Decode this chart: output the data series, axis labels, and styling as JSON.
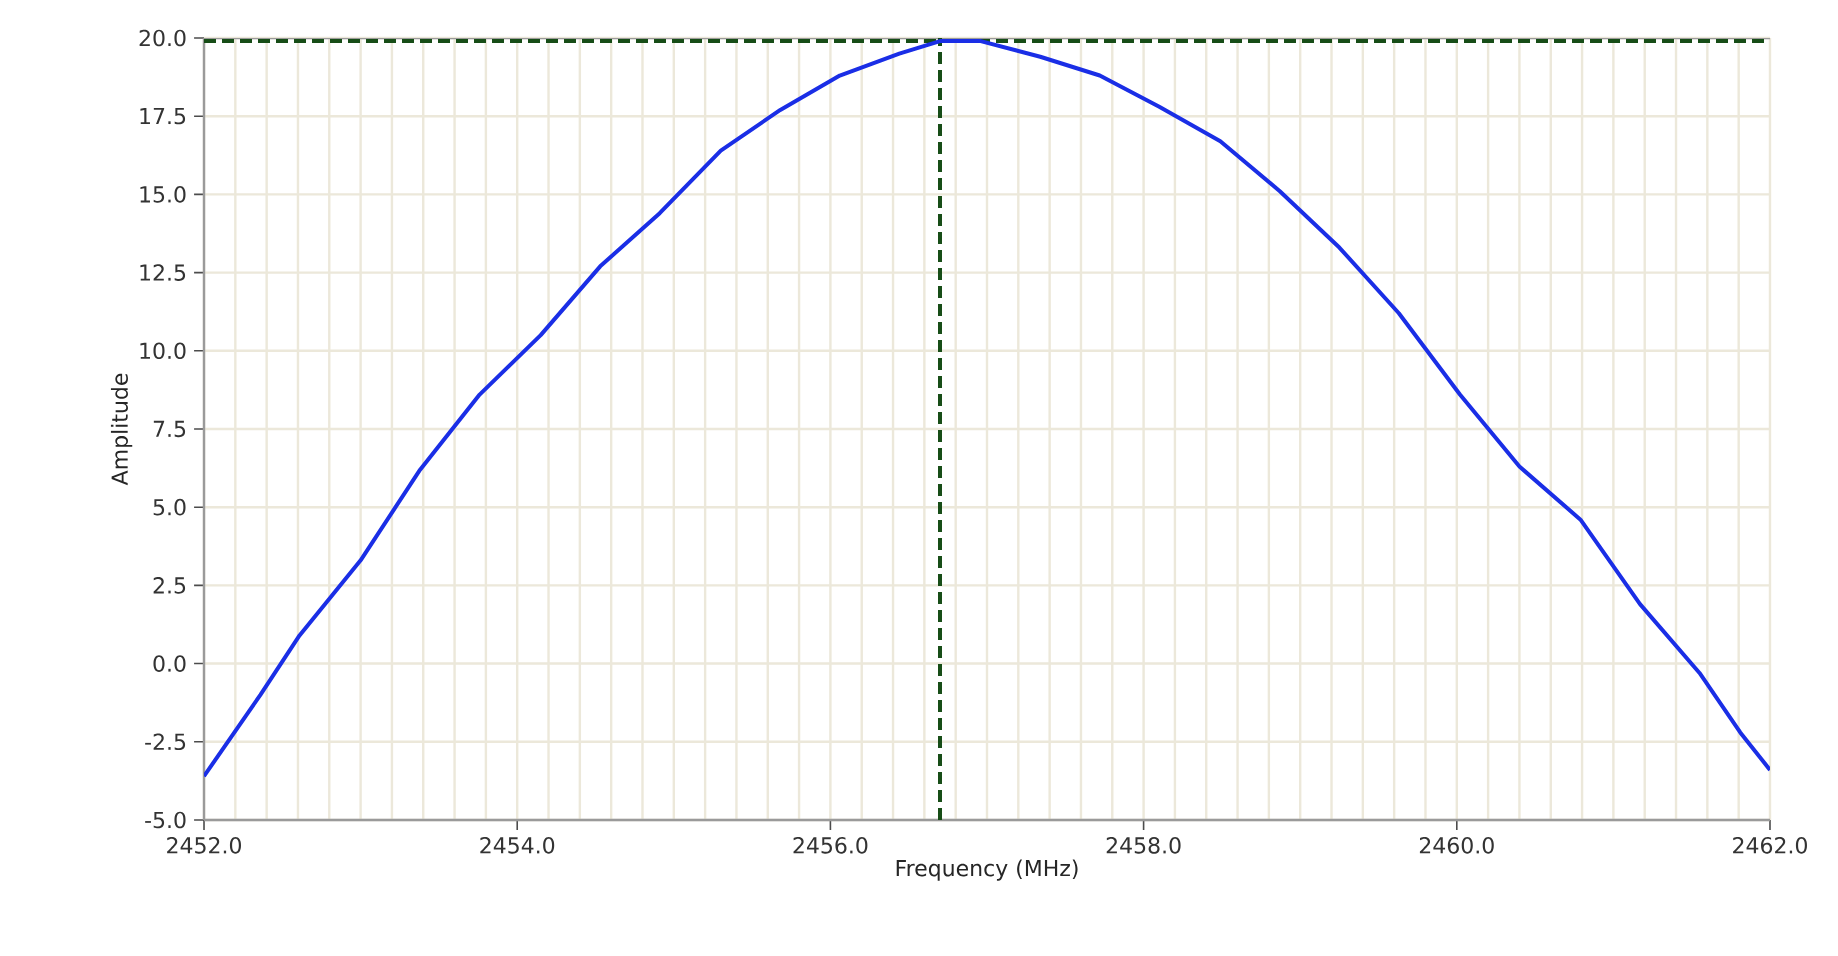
{
  "chart_data": {
    "type": "line",
    "xlabel": "Frequency (MHz)",
    "ylabel": "Amplitude",
    "series": [
      {
        "color": "#1a2ee6",
        "line_style": "solid",
        "marker": "none",
        "x": [
          2452.0,
          2452.36,
          2452.61,
          2453.0,
          2453.38,
          2453.76,
          2454.15,
          2454.53,
          2454.91,
          2455.3,
          2455.68,
          2456.06,
          2456.44,
          2456.7,
          2456.96,
          2457.34,
          2457.72,
          2458.1,
          2458.49,
          2458.87,
          2459.25,
          2459.63,
          2460.02,
          2460.4,
          2460.79,
          2461.17,
          2461.55,
          2461.81,
          2462.0
        ],
        "values": [
          -3.6,
          -1.0,
          0.9,
          3.3,
          6.2,
          8.6,
          10.5,
          12.7,
          14.4,
          16.4,
          17.7,
          18.8,
          19.5,
          19.9,
          19.9,
          19.4,
          18.8,
          17.8,
          16.7,
          15.1,
          13.3,
          11.2,
          8.6,
          6.3,
          4.6,
          1.9,
          -0.3,
          -2.2,
          -3.4
        ]
      }
    ],
    "xlim": [
      2452,
      2462
    ],
    "ylim": [
      -5,
      20
    ],
    "xticks": [
      {
        "value": 2452,
        "label": "2452.0"
      },
      {
        "value": 2454,
        "label": "2454.0"
      },
      {
        "value": 2456,
        "label": "2456.0"
      },
      {
        "value": 2458,
        "label": "2458.0"
      },
      {
        "value": 2460,
        "label": "2460.0"
      },
      {
        "value": 2462,
        "label": "2462.0"
      }
    ],
    "yticks": [
      {
        "value": -5,
        "label": "-5.0"
      },
      {
        "value": -2.5,
        "label": "-2.5"
      },
      {
        "value": 0,
        "label": "0.0"
      },
      {
        "value": 2.5,
        "label": "2.5"
      },
      {
        "value": 5,
        "label": "5.0"
      },
      {
        "value": 7.5,
        "label": "7.5"
      },
      {
        "value": 10,
        "label": "10.0"
      },
      {
        "value": 12.5,
        "label": "12.5"
      },
      {
        "value": 15,
        "label": "15.0"
      },
      {
        "value": 17.5,
        "label": "17.5"
      },
      {
        "value": 20,
        "label": "20.0"
      }
    ],
    "grid": true,
    "ref_lines": [
      {
        "axis": "x",
        "value": 2456.7,
        "color": "#174d17",
        "line_style": "dashed"
      },
      {
        "axis": "y",
        "value": 19.9,
        "color": "#174d17",
        "line_style": "dashed"
      }
    ]
  }
}
